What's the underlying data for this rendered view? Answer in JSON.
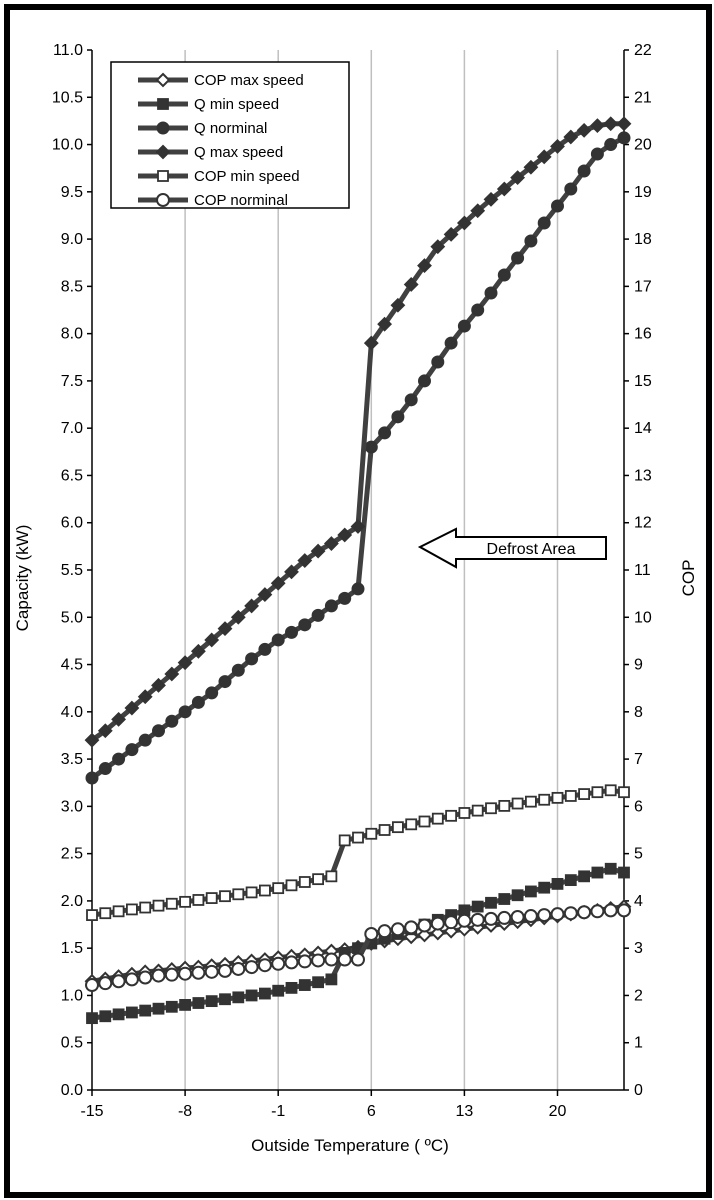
{
  "chart_data": {
    "type": "line",
    "xlabel": "Outside Temperature ( ºC)",
    "ylabel": "Capacity (kW)",
    "y2label": "COP",
    "xlim": [
      -15,
      25
    ],
    "ylim": [
      0,
      11
    ],
    "y2lim": [
      0,
      22
    ],
    "xticks": [
      "-15",
      "-8",
      "-1",
      "6",
      "13",
      "20"
    ],
    "yticks": [
      "0.0",
      "0.5",
      "1.0",
      "1.5",
      "2.0",
      "2.5",
      "3.0",
      "3.5",
      "4.0",
      "4.5",
      "5.0",
      "5.5",
      "6.0",
      "6.5",
      "7.0",
      "7.5",
      "8.0",
      "8.5",
      "9.0",
      "9.5",
      "10.0",
      "10.5",
      "11.0"
    ],
    "y2ticks": [
      "0",
      "1",
      "2",
      "3",
      "4",
      "5",
      "6",
      "7",
      "8",
      "9",
      "10",
      "11",
      "12",
      "13",
      "14",
      "15",
      "16",
      "17",
      "18",
      "19",
      "20",
      "21",
      "22"
    ],
    "grid": "vertical",
    "legend_position": "top-left",
    "annotation": "Defrost Area",
    "series": [
      {
        "name": "COP max speed",
        "axis": "right",
        "marker": "diamond-open",
        "points": [
          [
            -15,
            2.3
          ],
          [
            -14,
            2.35
          ],
          [
            -13,
            2.4
          ],
          [
            -12,
            2.45
          ],
          [
            -11,
            2.5
          ],
          [
            -10,
            2.52
          ],
          [
            -9,
            2.55
          ],
          [
            -8,
            2.58
          ],
          [
            -7,
            2.6
          ],
          [
            -6,
            2.63
          ],
          [
            -5,
            2.66
          ],
          [
            -4,
            2.7
          ],
          [
            -3,
            2.73
          ],
          [
            -2,
            2.76
          ],
          [
            -1,
            2.8
          ],
          [
            0,
            2.83
          ],
          [
            1,
            2.86
          ],
          [
            2,
            2.9
          ],
          [
            3,
            2.94
          ],
          [
            4,
            2.97
          ],
          [
            5,
            3.02
          ],
          [
            6,
            3.1
          ],
          [
            7,
            3.15
          ],
          [
            8,
            3.2
          ],
          [
            9,
            3.24
          ],
          [
            10,
            3.28
          ],
          [
            11,
            3.32
          ],
          [
            12,
            3.36
          ],
          [
            13,
            3.4
          ],
          [
            14,
            3.44
          ],
          [
            15,
            3.48
          ],
          [
            16,
            3.52
          ],
          [
            17,
            3.56
          ],
          [
            18,
            3.6
          ],
          [
            19,
            3.64
          ],
          [
            20,
            3.68
          ],
          [
            21,
            3.72
          ],
          [
            22,
            3.76
          ],
          [
            23,
            3.8
          ],
          [
            24,
            3.84
          ],
          [
            25,
            3.88
          ]
        ]
      },
      {
        "name": "Q min speed",
        "axis": "left",
        "marker": "square-filled",
        "points": [
          [
            -15,
            0.76
          ],
          [
            -14,
            0.78
          ],
          [
            -13,
            0.8
          ],
          [
            -12,
            0.82
          ],
          [
            -11,
            0.84
          ],
          [
            -10,
            0.86
          ],
          [
            -9,
            0.88
          ],
          [
            -8,
            0.9
          ],
          [
            -7,
            0.92
          ],
          [
            -6,
            0.94
          ],
          [
            -5,
            0.96
          ],
          [
            -4,
            0.98
          ],
          [
            -3,
            1.0
          ],
          [
            -2,
            1.02
          ],
          [
            -1,
            1.05
          ],
          [
            0,
            1.08
          ],
          [
            1,
            1.11
          ],
          [
            2,
            1.14
          ],
          [
            3,
            1.17
          ],
          [
            4,
            1.45
          ],
          [
            5,
            1.5
          ],
          [
            6,
            1.55
          ],
          [
            7,
            1.6
          ],
          [
            8,
            1.65
          ],
          [
            9,
            1.7
          ],
          [
            10,
            1.75
          ],
          [
            11,
            1.8
          ],
          [
            12,
            1.85
          ],
          [
            13,
            1.9
          ],
          [
            14,
            1.94
          ],
          [
            15,
            1.98
          ],
          [
            16,
            2.02
          ],
          [
            17,
            2.06
          ],
          [
            18,
            2.1
          ],
          [
            19,
            2.14
          ],
          [
            20,
            2.18
          ],
          [
            21,
            2.22
          ],
          [
            22,
            2.26
          ],
          [
            23,
            2.3
          ],
          [
            24,
            2.34
          ],
          [
            25,
            2.3
          ]
        ]
      },
      {
        "name": "Q norminal",
        "axis": "left",
        "marker": "circle-filled",
        "points": [
          [
            -15,
            3.3
          ],
          [
            -14,
            3.4
          ],
          [
            -13,
            3.5
          ],
          [
            -12,
            3.6
          ],
          [
            -11,
            3.7
          ],
          [
            -10,
            3.8
          ],
          [
            -9,
            3.9
          ],
          [
            -8,
            4.0
          ],
          [
            -7,
            4.1
          ],
          [
            -6,
            4.2
          ],
          [
            -5,
            4.32
          ],
          [
            -4,
            4.44
          ],
          [
            -3,
            4.56
          ],
          [
            -2,
            4.66
          ],
          [
            -1,
            4.76
          ],
          [
            0,
            4.84
          ],
          [
            1,
            4.92
          ],
          [
            2,
            5.02
          ],
          [
            3,
            5.12
          ],
          [
            4,
            5.2
          ],
          [
            5,
            5.3
          ],
          [
            6,
            6.8
          ],
          [
            7,
            6.95
          ],
          [
            8,
            7.12
          ],
          [
            9,
            7.3
          ],
          [
            10,
            7.5
          ],
          [
            11,
            7.7
          ],
          [
            12,
            7.9
          ],
          [
            13,
            8.08
          ],
          [
            14,
            8.25
          ],
          [
            15,
            8.43
          ],
          [
            16,
            8.62
          ],
          [
            17,
            8.8
          ],
          [
            18,
            8.98
          ],
          [
            19,
            9.17
          ],
          [
            20,
            9.35
          ],
          [
            21,
            9.53
          ],
          [
            22,
            9.72
          ],
          [
            23,
            9.9
          ],
          [
            24,
            10.0
          ],
          [
            25,
            10.07
          ]
        ]
      },
      {
        "name": "Q max speed",
        "axis": "left",
        "marker": "diamond-filled",
        "points": [
          [
            -15,
            3.7
          ],
          [
            -14,
            3.8
          ],
          [
            -13,
            3.92
          ],
          [
            -12,
            4.04
          ],
          [
            -11,
            4.16
          ],
          [
            -10,
            4.28
          ],
          [
            -9,
            4.4
          ],
          [
            -8,
            4.52
          ],
          [
            -7,
            4.64
          ],
          [
            -6,
            4.76
          ],
          [
            -5,
            4.88
          ],
          [
            -4,
            5.0
          ],
          [
            -3,
            5.12
          ],
          [
            -2,
            5.24
          ],
          [
            -1,
            5.36
          ],
          [
            0,
            5.48
          ],
          [
            1,
            5.6
          ],
          [
            2,
            5.7
          ],
          [
            3,
            5.78
          ],
          [
            4,
            5.87
          ],
          [
            5,
            5.96
          ],
          [
            6,
            7.9
          ],
          [
            7,
            8.1
          ],
          [
            8,
            8.3
          ],
          [
            9,
            8.52
          ],
          [
            10,
            8.72
          ],
          [
            11,
            8.92
          ],
          [
            12,
            9.05
          ],
          [
            13,
            9.17
          ],
          [
            14,
            9.3
          ],
          [
            15,
            9.42
          ],
          [
            16,
            9.53
          ],
          [
            17,
            9.65
          ],
          [
            18,
            9.76
          ],
          [
            19,
            9.87
          ],
          [
            20,
            9.98
          ],
          [
            21,
            10.08
          ],
          [
            22,
            10.15
          ],
          [
            23,
            10.2
          ],
          [
            24,
            10.22
          ],
          [
            25,
            10.22
          ]
        ]
      },
      {
        "name": "COP min speed",
        "axis": "right",
        "marker": "square-open",
        "points": [
          [
            -15,
            3.7
          ],
          [
            -14,
            3.74
          ],
          [
            -13,
            3.78
          ],
          [
            -12,
            3.82
          ],
          [
            -11,
            3.86
          ],
          [
            -10,
            3.9
          ],
          [
            -9,
            3.94
          ],
          [
            -8,
            3.98
          ],
          [
            -7,
            4.02
          ],
          [
            -6,
            4.06
          ],
          [
            -5,
            4.1
          ],
          [
            -4,
            4.14
          ],
          [
            -3,
            4.18
          ],
          [
            -2,
            4.22
          ],
          [
            -1,
            4.27
          ],
          [
            0,
            4.33
          ],
          [
            1,
            4.4
          ],
          [
            2,
            4.46
          ],
          [
            3,
            4.52
          ],
          [
            4,
            5.28
          ],
          [
            5,
            5.34
          ],
          [
            6,
            5.42
          ],
          [
            7,
            5.5
          ],
          [
            8,
            5.56
          ],
          [
            9,
            5.62
          ],
          [
            10,
            5.68
          ],
          [
            11,
            5.74
          ],
          [
            12,
            5.8
          ],
          [
            13,
            5.86
          ],
          [
            14,
            5.91
          ],
          [
            15,
            5.96
          ],
          [
            16,
            6.01
          ],
          [
            17,
            6.06
          ],
          [
            18,
            6.1
          ],
          [
            19,
            6.14
          ],
          [
            20,
            6.18
          ],
          [
            21,
            6.22
          ],
          [
            22,
            6.26
          ],
          [
            23,
            6.3
          ],
          [
            24,
            6.34
          ],
          [
            25,
            6.3
          ]
        ]
      },
      {
        "name": "COP norminal",
        "axis": "right",
        "marker": "circle-open",
        "points": [
          [
            -15,
            2.22
          ],
          [
            -14,
            2.26
          ],
          [
            -13,
            2.3
          ],
          [
            -12,
            2.34
          ],
          [
            -11,
            2.38
          ],
          [
            -10,
            2.42
          ],
          [
            -9,
            2.44
          ],
          [
            -8,
            2.46
          ],
          [
            -7,
            2.48
          ],
          [
            -6,
            2.5
          ],
          [
            -5,
            2.52
          ],
          [
            -4,
            2.56
          ],
          [
            -3,
            2.6
          ],
          [
            -2,
            2.64
          ],
          [
            -1,
            2.67
          ],
          [
            0,
            2.7
          ],
          [
            1,
            2.72
          ],
          [
            2,
            2.74
          ],
          [
            3,
            2.76
          ],
          [
            4,
            2.76
          ],
          [
            5,
            2.76
          ],
          [
            6,
            3.3
          ],
          [
            7,
            3.36
          ],
          [
            8,
            3.4
          ],
          [
            9,
            3.44
          ],
          [
            10,
            3.48
          ],
          [
            11,
            3.52
          ],
          [
            12,
            3.55
          ],
          [
            13,
            3.58
          ],
          [
            14,
            3.6
          ],
          [
            15,
            3.62
          ],
          [
            16,
            3.64
          ],
          [
            17,
            3.66
          ],
          [
            18,
            3.68
          ],
          [
            19,
            3.7
          ],
          [
            20,
            3.72
          ],
          [
            21,
            3.74
          ],
          [
            22,
            3.76
          ],
          [
            23,
            3.78
          ],
          [
            24,
            3.8
          ],
          [
            25,
            3.8
          ]
        ]
      }
    ]
  }
}
